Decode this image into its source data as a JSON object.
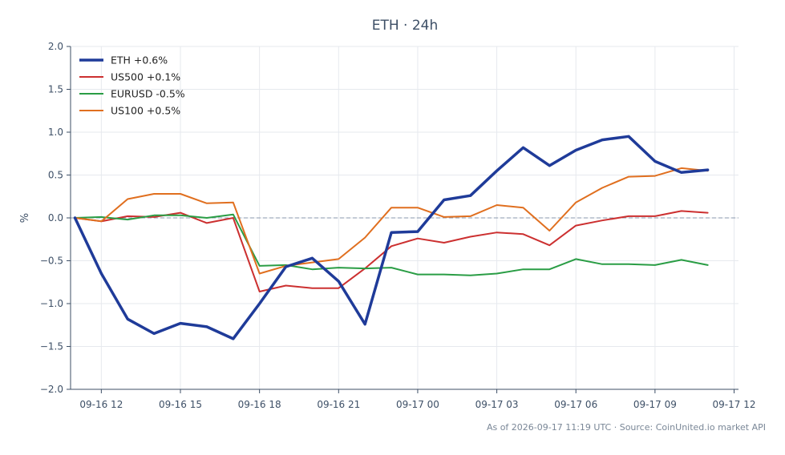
{
  "chart_data": {
    "type": "line",
    "title": "ETH · 24h",
    "xlabel": "",
    "ylabel": "%",
    "ylim": [
      -2.0,
      2.0
    ],
    "xlim": [
      "2026-09-16 10:50",
      "2026-09-17 12:10"
    ],
    "yticks": [
      2.0,
      1.5,
      1.0,
      0.5,
      0.0,
      -0.5,
      -1.0,
      -1.5,
      -2.0
    ],
    "ytick_labels": [
      "2.0",
      "1.5",
      "1.0",
      "0.5",
      "0.0",
      "−0.5",
      "−1.0",
      "−1.5",
      "−2.0"
    ],
    "xticks": [
      "2026-09-16 12:00",
      "2026-09-16 15:00",
      "2026-09-16 18:00",
      "2026-09-16 21:00",
      "2026-09-17 00:00",
      "2026-09-17 03:00",
      "2026-09-17 06:00",
      "2026-09-17 09:00",
      "2026-09-17 12:00"
    ],
    "xtick_labels": [
      "09-16 12",
      "09-16 15",
      "09-16 18",
      "09-16 21",
      "09-17 00",
      "09-17 03",
      "09-17 06",
      "09-17 09",
      "09-17 12"
    ],
    "grid": true,
    "zero_line": true,
    "legend_position": "top-left",
    "x": [
      "2026-09-16 11:00",
      "2026-09-16 12:00",
      "2026-09-16 13:00",
      "2026-09-16 14:00",
      "2026-09-16 15:00",
      "2026-09-16 16:00",
      "2026-09-16 17:00",
      "2026-09-16 18:00",
      "2026-09-16 19:00",
      "2026-09-16 20:00",
      "2026-09-16 21:00",
      "2026-09-16 22:00",
      "2026-09-16 23:00",
      "2026-09-17 00:00",
      "2026-09-17 01:00",
      "2026-09-17 02:00",
      "2026-09-17 03:00",
      "2026-09-17 04:00",
      "2026-09-17 05:00",
      "2026-09-17 06:00",
      "2026-09-17 07:00",
      "2026-09-17 08:00",
      "2026-09-17 09:00",
      "2026-09-17 10:00",
      "2026-09-17 11:00"
    ],
    "series": [
      {
        "name": "ETH +0.6%",
        "color": "#1f3b99",
        "line_width": "thick",
        "values": [
          0.0,
          -0.65,
          -1.18,
          -1.35,
          -1.23,
          -1.27,
          -1.41,
          -1.0,
          -0.57,
          -0.47,
          -0.74,
          -1.24,
          -0.17,
          -0.16,
          0.21,
          0.26,
          0.55,
          0.82,
          0.61,
          0.79,
          0.91,
          0.95,
          0.66,
          0.53,
          0.56
        ]
      },
      {
        "name": "US500 +0.1%",
        "color": "#cc3030",
        "values": [
          0.0,
          -0.04,
          0.02,
          0.01,
          0.06,
          -0.06,
          0.0,
          -0.86,
          -0.79,
          -0.82,
          -0.82,
          -0.59,
          -0.33,
          -0.24,
          -0.29,
          -0.22,
          -0.17,
          -0.19,
          -0.32,
          -0.09,
          -0.03,
          0.02,
          0.02,
          0.08,
          0.06
        ]
      },
      {
        "name": "EURUSD -0.5%",
        "color": "#2a9d45",
        "values": [
          0.0,
          0.01,
          -0.02,
          0.03,
          0.03,
          0.0,
          0.04,
          -0.56,
          -0.55,
          -0.6,
          -0.58,
          -0.59,
          -0.58,
          -0.66,
          -0.66,
          -0.67,
          -0.65,
          -0.6,
          -0.6,
          -0.48,
          -0.54,
          -0.54,
          -0.55,
          -0.49,
          -0.55
        ]
      },
      {
        "name": "US100 +0.5%",
        "color": "#e06f1f",
        "values": [
          0.0,
          -0.04,
          0.22,
          0.28,
          0.28,
          0.17,
          0.18,
          -0.65,
          -0.56,
          -0.52,
          -0.48,
          -0.23,
          0.12,
          0.12,
          0.01,
          0.02,
          0.15,
          0.12,
          -0.15,
          0.18,
          0.35,
          0.48,
          0.49,
          0.58,
          0.55
        ]
      }
    ],
    "footnote": "As of 2026-09-17 11:19 UTC · Source: CoinUnited.io market API"
  },
  "colors": {
    "title": "#3d4f66",
    "axis": "#3d4f66",
    "grid": "#e6e9ee",
    "zero_line": "#8a99ad",
    "footnote": "#7a8797"
  }
}
